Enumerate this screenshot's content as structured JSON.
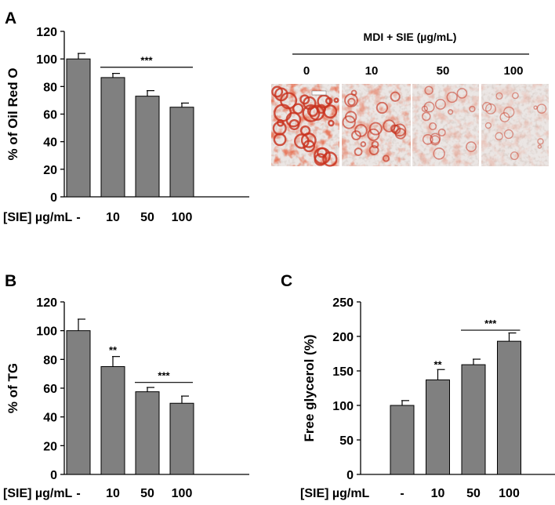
{
  "colors": {
    "bar_fill": "#808080",
    "bar_stroke": "#000000",
    "stain_red": "#c8321e",
    "background": "#ffffff"
  },
  "panel_letters": [
    "A",
    "B",
    "C"
  ],
  "micrographs": {
    "title": "MDI + SIE (µg/mL)",
    "labels": [
      "0",
      "10",
      "50",
      "100"
    ],
    "stain_intensity": [
      0.95,
      0.6,
      0.35,
      0.25
    ]
  },
  "chart_data": [
    {
      "type": "bar",
      "id": "A",
      "categories": [
        "-",
        "10",
        "50",
        "100"
      ],
      "values": [
        100,
        86.5,
        73,
        65
      ],
      "errors": [
        4,
        3,
        4,
        3
      ],
      "ylabel": "% of Oil Red O",
      "xlabel": "[SIE] µg/mL",
      "ylim": [
        0,
        120
      ],
      "yticks": [
        0,
        20,
        40,
        60,
        80,
        100,
        120
      ],
      "annotations": [
        {
          "text": "***",
          "type": "bracket",
          "from": 1,
          "to": 3,
          "y": 94
        }
      ]
    },
    {
      "type": "bar",
      "id": "B",
      "categories": [
        "-",
        "10",
        "50",
        "100"
      ],
      "values": [
        100,
        75,
        57.5,
        49.5
      ],
      "errors": [
        8,
        7,
        3,
        5
      ],
      "ylabel": "% of TG",
      "xlabel": "[SIE] µg/mL",
      "ylim": [
        0,
        120
      ],
      "yticks": [
        0,
        20,
        40,
        60,
        80,
        100,
        120
      ],
      "annotations": [
        {
          "text": "**",
          "type": "label",
          "at": 1,
          "y": 84
        },
        {
          "text": "***",
          "type": "bracket",
          "from": 2,
          "to": 3,
          "y": 64
        }
      ]
    },
    {
      "type": "bar",
      "id": "C",
      "categories": [
        "-",
        "10",
        "50",
        "100"
      ],
      "values": [
        100,
        137,
        159,
        193
      ],
      "errors": [
        7,
        15,
        8,
        12
      ],
      "ylabel": "Free glycerol (%)",
      "xlabel": "[SIE] µg/mL",
      "ylim": [
        0,
        250
      ],
      "yticks": [
        0,
        50,
        100,
        150,
        200,
        250
      ],
      "annotations": [
        {
          "text": "**",
          "type": "label",
          "at": 1,
          "y": 154
        },
        {
          "text": "***",
          "type": "bracket",
          "from": 2,
          "to": 3,
          "y": 209
        }
      ]
    }
  ]
}
